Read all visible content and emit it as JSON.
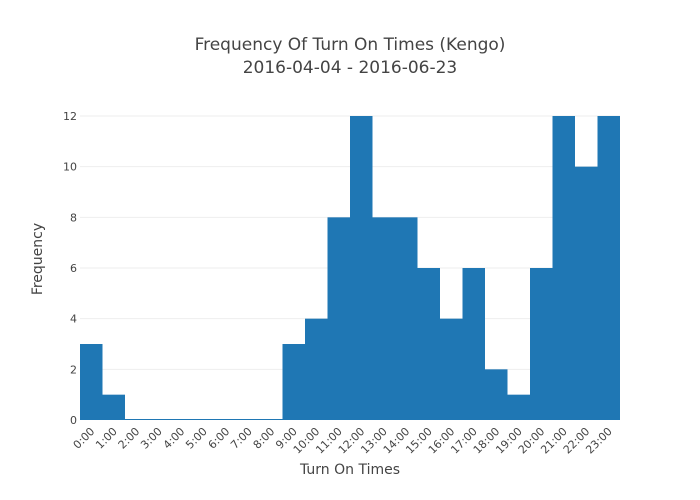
{
  "chart_data": {
    "type": "bar",
    "title": [
      "Frequency Of Turn On Times (Kengo)",
      "2016-04-04 - 2016-06-23"
    ],
    "xlabel": "Turn On Times",
    "ylabel": "Frequency",
    "categories": [
      "0:00",
      "1:00",
      "2:00",
      "3:00",
      "4:00",
      "5:00",
      "6:00",
      "7:00",
      "8:00",
      "9:00",
      "10:00",
      "11:00",
      "12:00",
      "13:00",
      "14:00",
      "15:00",
      "16:00",
      "17:00",
      "18:00",
      "19:00",
      "20:00",
      "21:00",
      "22:00",
      "23:00"
    ],
    "values": [
      3,
      1,
      0,
      0,
      0,
      0,
      0,
      0,
      0,
      3,
      4,
      8,
      12,
      8,
      8,
      6,
      4,
      6,
      2,
      1,
      6,
      12,
      10,
      12
    ],
    "ylim": [
      0,
      12
    ],
    "yticks": [
      0,
      2,
      4,
      6,
      8,
      10,
      12
    ],
    "grid": true,
    "colors": {
      "bar": "#1f77b4",
      "grid": "#eeeeee"
    }
  }
}
